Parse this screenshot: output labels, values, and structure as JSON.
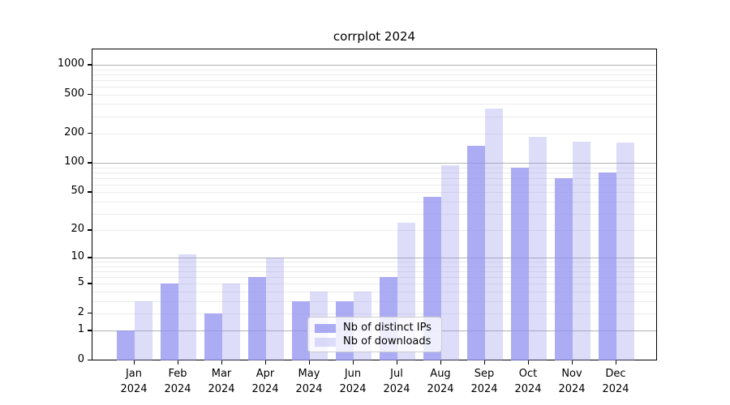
{
  "page_title": "corrplot 2024",
  "chart_data": {
    "type": "bar",
    "title": "corrplot 2024",
    "x_axis": {
      "categories": [
        "Jan 2024",
        "Feb 2024",
        "Mar 2024",
        "Apr 2024",
        "May 2024",
        "Jun 2024",
        "Jul 2024",
        "Aug 2024",
        "Sep 2024",
        "Oct 2024",
        "Nov 2024",
        "Dec 2024"
      ],
      "tick_line1": [
        "Jan",
        "Feb",
        "Mar",
        "Apr",
        "May",
        "Jun",
        "Jul",
        "Aug",
        "Sep",
        "Oct",
        "Nov",
        "Dec"
      ],
      "tick_line2": "2024"
    },
    "y_axis": {
      "scale": "log1p",
      "scale_note": "tick position proportional to log10(value+1), symlog-like with 0 shown",
      "tick_labels": [
        0,
        1,
        2,
        5,
        10,
        20,
        50,
        100,
        200,
        500,
        1000
      ],
      "major_gridlines": [
        1,
        10,
        100,
        1000
      ],
      "minor_gridlines": [
        2,
        3,
        4,
        5,
        6,
        7,
        8,
        9,
        20,
        30,
        40,
        50,
        60,
        70,
        80,
        90,
        200,
        300,
        400,
        500,
        600,
        700,
        800,
        900
      ],
      "range": [
        0,
        1440
      ],
      "grid": true
    },
    "series": [
      {
        "name": "Nb of distinct IPs",
        "color": "#9090f0",
        "opacity": 0.75,
        "values": [
          1,
          5,
          2,
          6,
          3,
          3,
          6,
          45,
          150,
          90,
          70,
          80
        ]
      },
      {
        "name": "Nb of downloads",
        "color": "#9090f0",
        "opacity": 0.3,
        "values": [
          3,
          11,
          5,
          10,
          4,
          4,
          24,
          95,
          360,
          185,
          165,
          163
        ]
      }
    ],
    "legend": {
      "position": "lower center",
      "entries": [
        "Nb of distinct IPs",
        "Nb of downloads"
      ]
    },
    "colors": {
      "background": "#ffffff",
      "axis": "#000000",
      "major_grid": "#b2b2b2",
      "minor_grid": "#ebebeb",
      "bar_dark_rendered": "#a9a9f4",
      "bar_light_rendered": "#dcdcf9"
    }
  }
}
